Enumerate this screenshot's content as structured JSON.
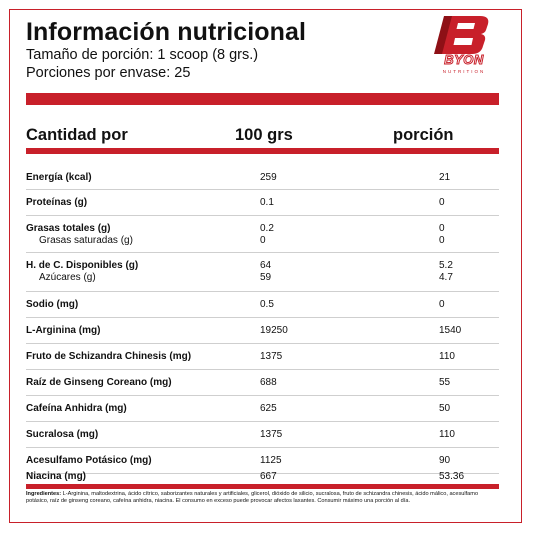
{
  "header": {
    "title": "Información nutricional",
    "serving_size": "Tamaño de porción: 1 scoop (8 grs.)",
    "servings": "Porciones por envase: 25"
  },
  "brand": {
    "name": "BYON",
    "tagline": "NUTRITION",
    "accent_color": "#c8202a"
  },
  "table": {
    "headers": {
      "label": "Cantidad por",
      "per100": "100 grs",
      "per_serving": "porción"
    },
    "rows": [
      {
        "name": "Energía (kcal)",
        "per100": "259",
        "per_serving": "21"
      },
      {
        "name": "Proteínas (g)",
        "per100": "0.1",
        "per_serving": "0"
      },
      {
        "name": "Grasas totales (g)",
        "per100": "0.2",
        "per_serving": "0",
        "sub_name": "Grasas saturadas (g)",
        "sub_per100": "0",
        "sub_per_serving": "0"
      },
      {
        "name": "H. de C. Disponibles (g)",
        "per100": "64",
        "per_serving": "5.2",
        "sub_name": "Azúcares (g)",
        "sub_per100": "59",
        "sub_per_serving": "4.7"
      },
      {
        "name": "Sodio (mg)",
        "per100": "0.5",
        "per_serving": "0"
      },
      {
        "name": "L-Arginina (mg)",
        "per100": "19250",
        "per_serving": "1540"
      },
      {
        "name": "Fruto de Schizandra Chinesis (mg)",
        "per100": "1375",
        "per_serving": "110"
      },
      {
        "name": "Raíz de Ginseng Coreano (mg)",
        "per100": "688",
        "per_serving": "55"
      },
      {
        "name": "Cafeína Anhidra (mg)",
        "per100": "625",
        "per_serving": "50"
      },
      {
        "name": "Sucralosa (mg)",
        "per100": "1375",
        "per_serving": "110"
      },
      {
        "name": "Acesulfamo Potásico (mg)",
        "per100": "1125",
        "per_serving": "90"
      },
      {
        "name": "Niacina (mg)",
        "per100": "667",
        "per_serving": "53.36"
      }
    ]
  },
  "footer": {
    "ingredients_label": "Ingredientes:",
    "ingredients_text": " L-Arginina, maltodextrina, ácido cítrico, saborizantes naturales y artificiales, glicerol, dióxido de silicio, sucralosa, fruto de schizandra chinesis, ácido málico, acesulfamo potásico, raíz de ginseng coreano, cafeína anhidra, niacina. El consumo en exceso puede provocar afectos laxantes. Consumir máximo una porción al día."
  }
}
